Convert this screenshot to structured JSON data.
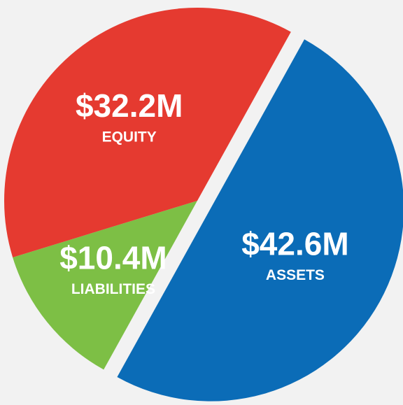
{
  "chart_data": {
    "type": "pie",
    "categories": [
      "ASSETS",
      "LIABILITIES",
      "EQUITY"
    ],
    "values": [
      42.6,
      10.4,
      32.2
    ],
    "value_labels": [
      "$42.6M",
      "$10.4M",
      "$32.2M"
    ],
    "colors": [
      "#0b6cb7",
      "#7dbf45",
      "#e53a30"
    ],
    "exploded": [
      "ASSETS"
    ]
  }
}
